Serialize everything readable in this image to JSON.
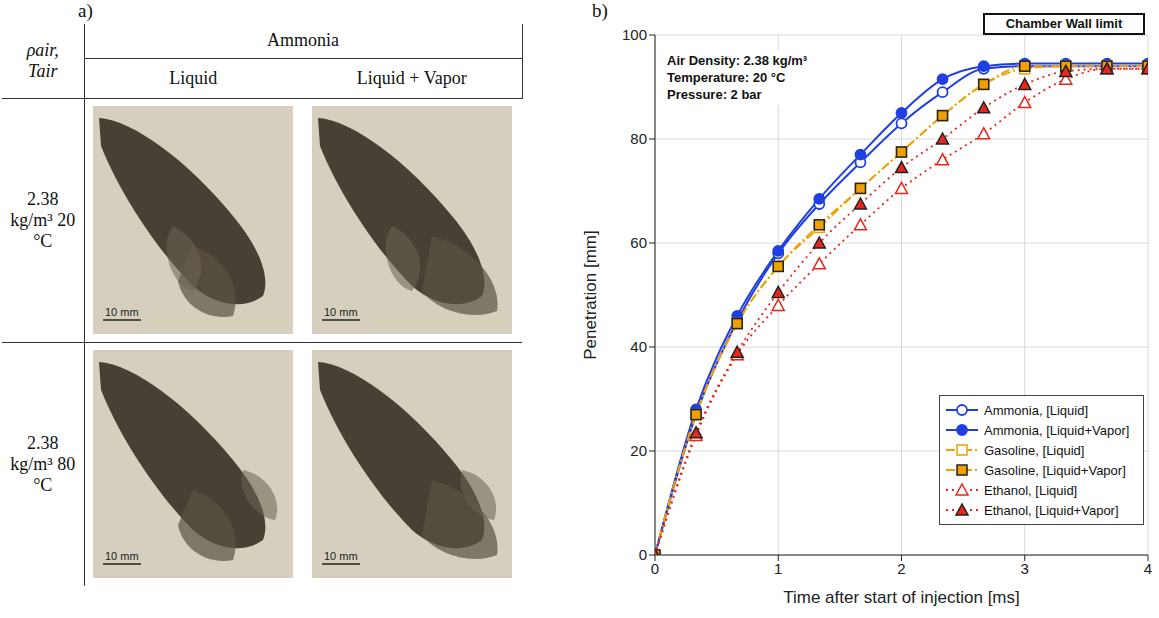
{
  "panels": [
    "a)",
    "b)"
  ],
  "table": {
    "header": {
      "corner": [
        "ρair,",
        "Tair"
      ],
      "group": "Ammonia",
      "columns": [
        "Liquid",
        "Liquid + Vapor"
      ]
    },
    "rows": [
      {
        "label": "2.38 kg/m³ 20 °C",
        "cells": [
          "10 mm",
          "10 mm"
        ]
      },
      {
        "label": "2.38 kg/m³ 80 °C",
        "cells": [
          "10 mm",
          "10 mm"
        ]
      }
    ]
  },
  "chart_data": {
    "type": "line",
    "annotations": [
      "Air Density: 2.38 kg/m³",
      "Temperature: 20 °C",
      "Pressure: 2 bar",
      "Chamber Wall limit"
    ],
    "xlabel": "Time after start of injection [ms]",
    "ylabel": "Penetration [mm]",
    "x": [
      0,
      0.333,
      0.667,
      1,
      1.333,
      1.667,
      2,
      2.333,
      2.667,
      3,
      3.333,
      3.667,
      4
    ],
    "xlim": [
      0,
      4
    ],
    "xticks": [
      0,
      1,
      2,
      3,
      4
    ],
    "ylim": [
      0,
      100
    ],
    "yticks": [
      0,
      20,
      40,
      60,
      80,
      100
    ],
    "grid": true,
    "legend": "lower right",
    "series": [
      {
        "name": "Ammonia, [Liquid]",
        "color": "#1f3fe0",
        "marker": "circle_open",
        "line_style": "solid",
        "values": [
          0,
          27,
          45,
          58,
          67.5,
          75.5,
          83,
          89,
          93.5,
          94,
          94,
          94,
          94
        ]
      },
      {
        "name": "Ammonia, [Liquid+Vapor]",
        "color": "#1f3fe0",
        "marker": "circle",
        "line_style": "solid",
        "values": [
          0,
          28,
          46,
          58.5,
          68.5,
          77,
          85,
          91.5,
          94,
          94.5,
          94.5,
          94.5,
          94.5
        ]
      },
      {
        "name": "Gasoline, [Liquid]",
        "color": "#f0a000",
        "marker": "square_open",
        "line_style": "dashdot",
        "values": [
          0,
          27,
          44.5,
          55.5,
          63,
          70.5,
          77.5,
          84.5,
          90.5,
          93.5,
          94,
          94,
          94
        ]
      },
      {
        "name": "Gasoline, [Liquid+Vapor]",
        "color": "#f0a000",
        "marker": "square",
        "line_style": "dashdot",
        "values": [
          0,
          27,
          44.5,
          55.5,
          63.5,
          70.5,
          77.5,
          84.5,
          90.5,
          94,
          94,
          94,
          94
        ]
      },
      {
        "name": "Ethanol, [Liquid]",
        "color": "#e8261c",
        "marker": "triangle_open",
        "line_style": "dotted",
        "values": [
          0,
          23,
          38.5,
          48,
          56,
          63.5,
          70.5,
          76,
          81,
          87,
          91.5,
          93.5,
          93.5
        ]
      },
      {
        "name": "Ethanol, [Liquid+Vapor]",
        "color": "#e8261c",
        "marker": "triangle",
        "line_style": "dotted",
        "values": [
          0,
          23.5,
          39,
          50.5,
          60,
          67.5,
          74.5,
          80,
          86,
          90.5,
          93,
          93.5,
          93.5
        ]
      }
    ]
  }
}
